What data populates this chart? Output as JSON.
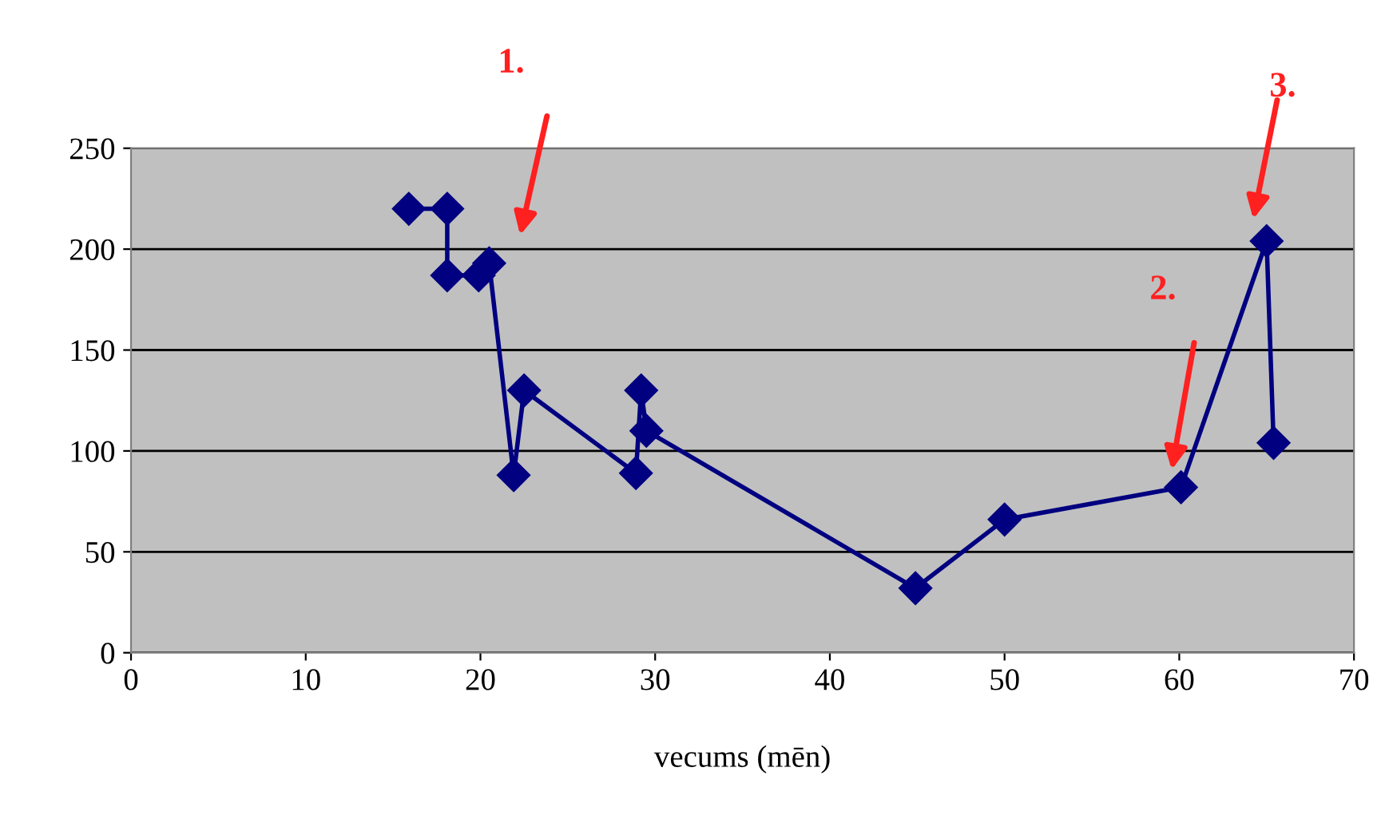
{
  "chart_data": {
    "type": "line",
    "xlabel": "vecums (mēn)",
    "series": [
      {
        "color": "#000080",
        "x": [
          15.9,
          18.1,
          18.1,
          19.9,
          20.5,
          21.9,
          22.5,
          28.9,
          29.2,
          29.5,
          44.9,
          50.0,
          60.1,
          65.0,
          65.4
        ],
        "values": [
          220,
          220,
          187,
          187,
          193,
          88,
          130,
          89,
          130,
          110,
          32,
          66,
          82,
          204,
          104
        ]
      }
    ],
    "annotations": [
      "1.",
      "2.",
      "3."
    ],
    "xlim": [
      0,
      70
    ],
    "xticks": [
      0,
      10,
      20,
      30,
      40,
      50,
      60,
      70
    ],
    "ylim": [
      0,
      250
    ],
    "yticks": [
      0,
      50,
      100,
      150,
      200,
      250
    ],
    "grid": "y",
    "marker": "diamond",
    "line_style": "solid",
    "legend": false
  }
}
